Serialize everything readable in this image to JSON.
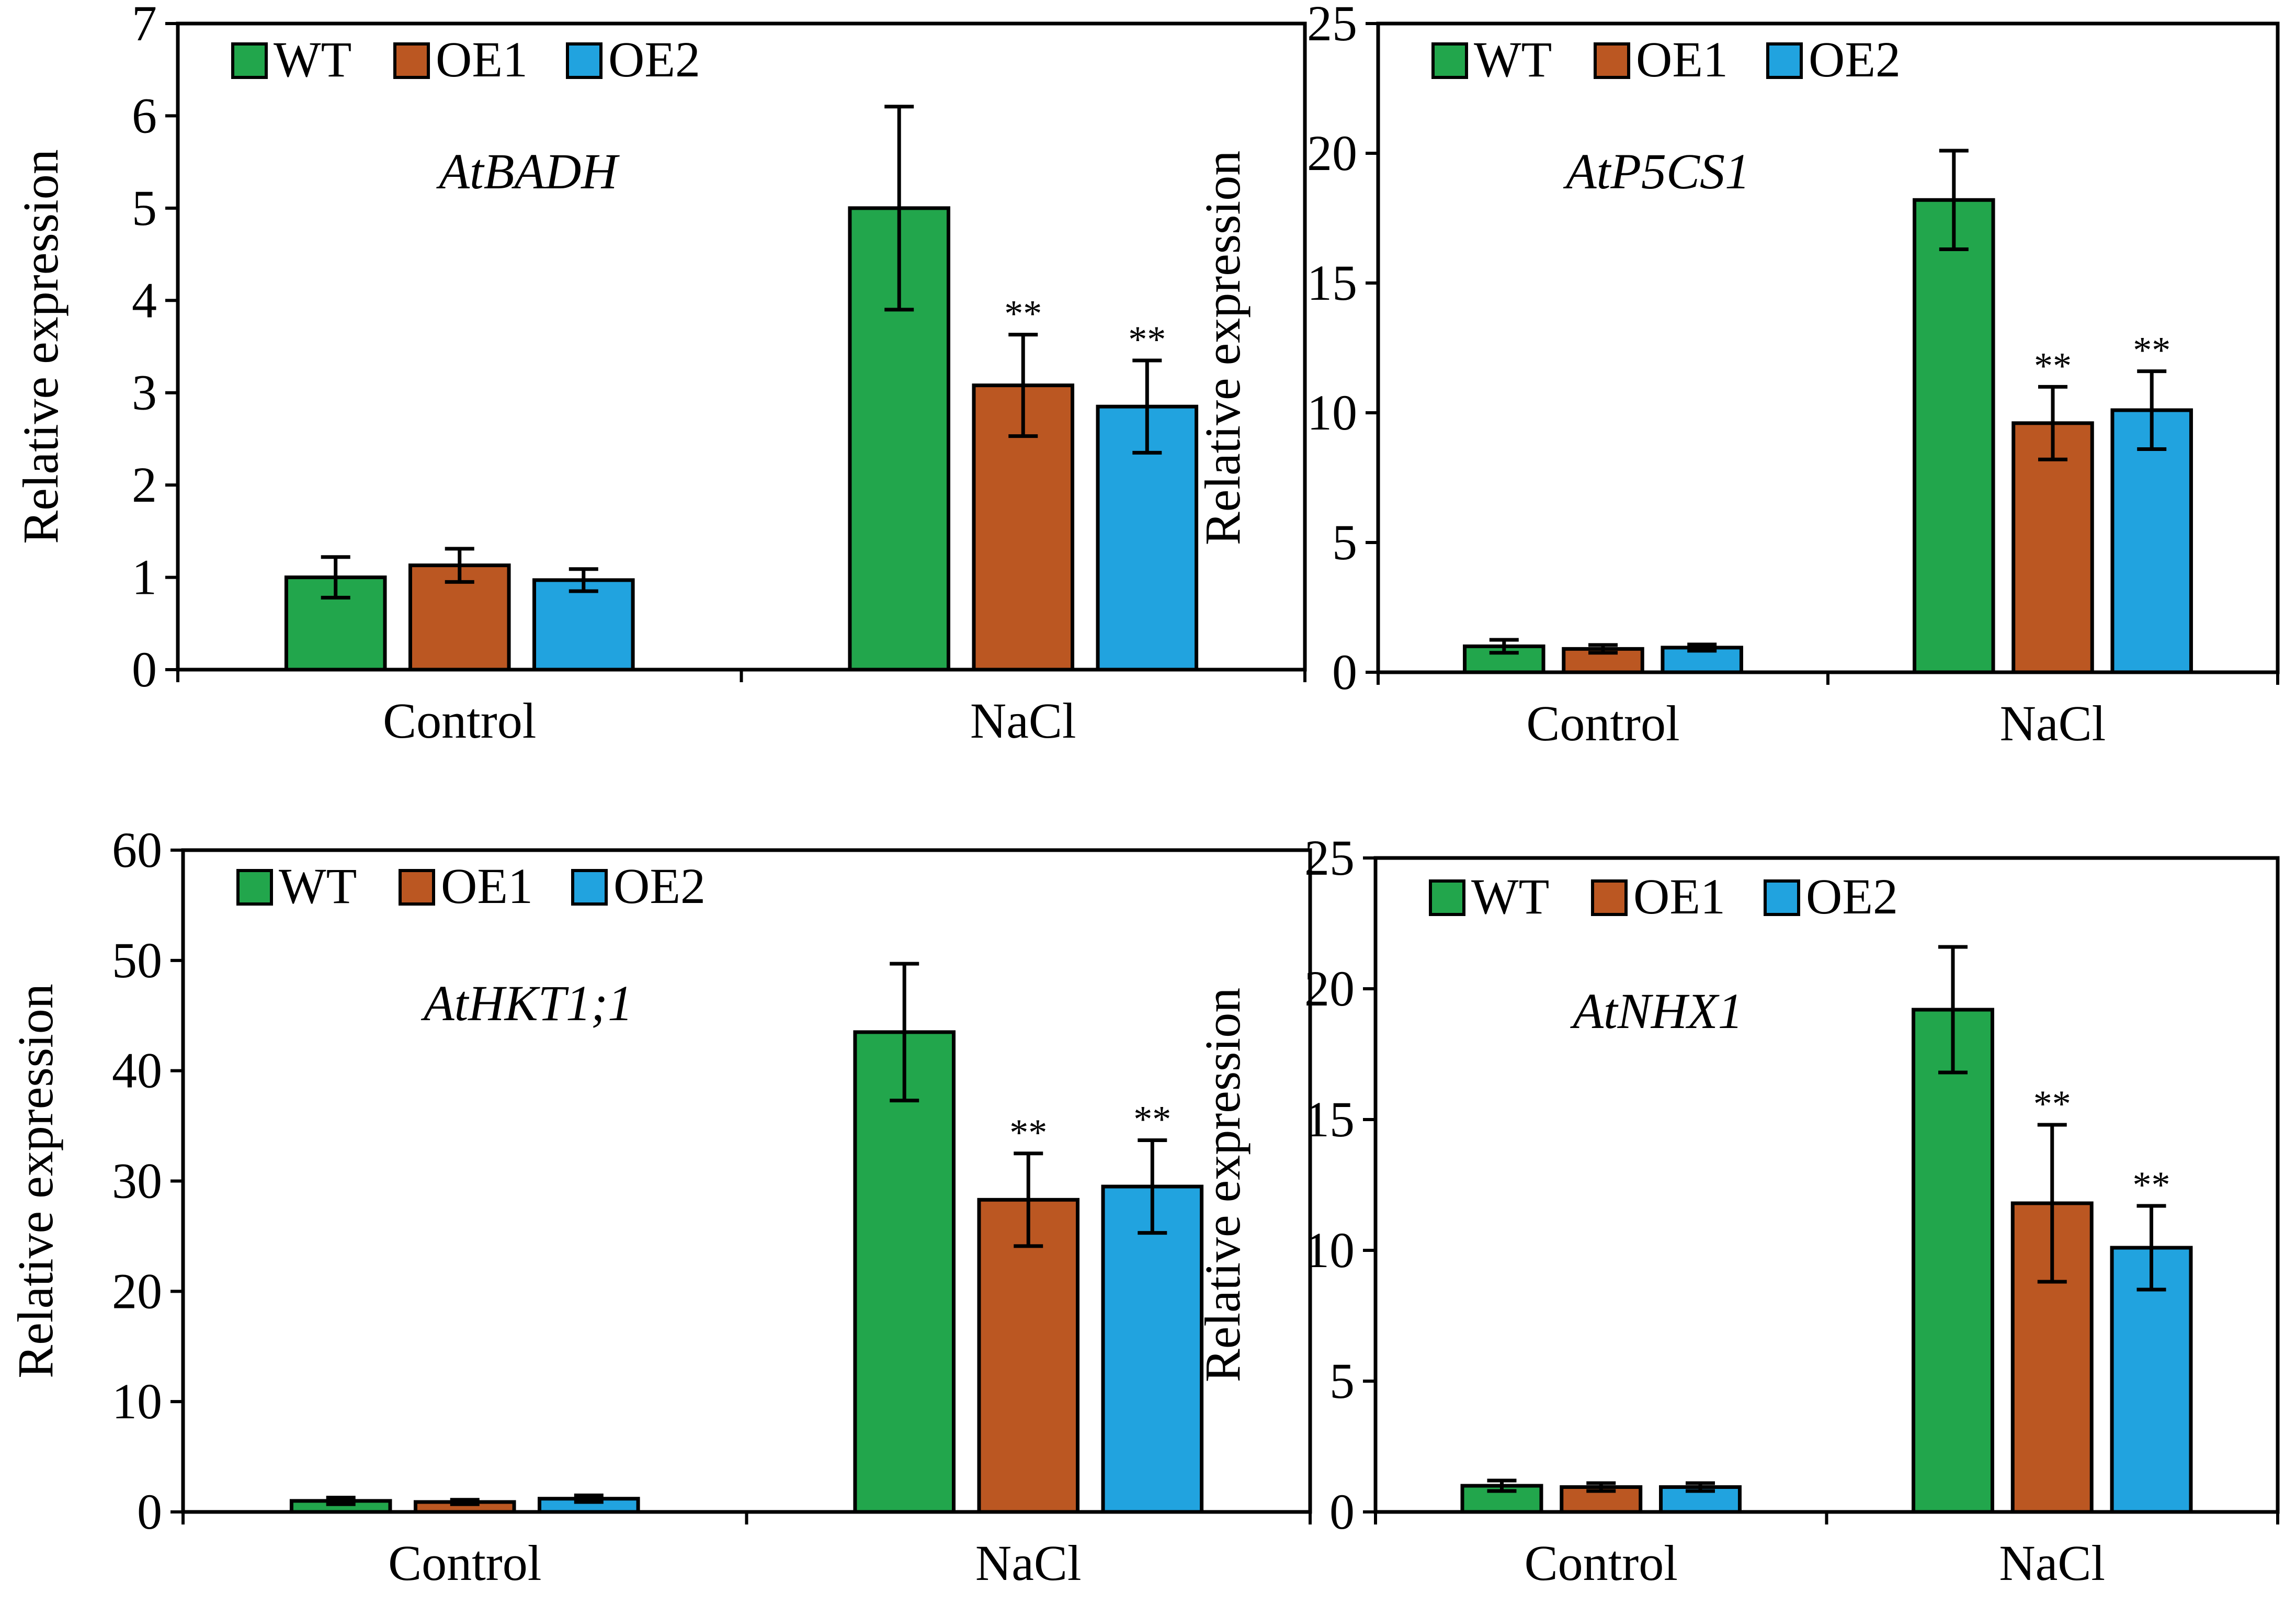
{
  "legend": [
    "WT",
    "OE1",
    "OE2"
  ],
  "colors": {
    "WT": "#22a64c",
    "OE1": "#bb5722",
    "OE2": "#21a3df",
    "axis": "#000000"
  },
  "chart_data": [
    {
      "type": "bar",
      "title": "AtBADH",
      "categories": [
        "Control",
        "NaCl"
      ],
      "ylabel": "Relative expression",
      "xlabel": "",
      "ylim": [
        0,
        7
      ],
      "yticks": [
        0,
        1,
        2,
        3,
        4,
        5,
        6,
        7
      ],
      "legend": [
        "WT",
        "OE1",
        "OE2"
      ],
      "series": [
        {
          "name": "WT",
          "values": [
            1.0,
            5.0
          ],
          "errors": [
            0.22,
            1.1
          ],
          "sig": [
            "",
            ""
          ]
        },
        {
          "name": "OE1",
          "values": [
            1.13,
            3.08
          ],
          "errors": [
            0.18,
            0.55
          ],
          "sig": [
            "",
            "**"
          ]
        },
        {
          "name": "OE2",
          "values": [
            0.97,
            2.85
          ],
          "errors": [
            0.12,
            0.5
          ],
          "sig": [
            "",
            "**"
          ]
        }
      ]
    },
    {
      "type": "bar",
      "title": "AtP5CS1",
      "categories": [
        "Control",
        "NaCl"
      ],
      "ylabel": "Relative expression",
      "xlabel": "",
      "ylim": [
        0,
        25
      ],
      "yticks": [
        0,
        5,
        10,
        15,
        20,
        25
      ],
      "legend": [
        "WT",
        "OE1",
        "OE2"
      ],
      "series": [
        {
          "name": "WT",
          "values": [
            1.0,
            18.2
          ],
          "errors": [
            0.25,
            1.9
          ],
          "sig": [
            "",
            ""
          ]
        },
        {
          "name": "OE1",
          "values": [
            0.9,
            9.6
          ],
          "errors": [
            0.15,
            1.4
          ],
          "sig": [
            "",
            "**"
          ]
        },
        {
          "name": "OE2",
          "values": [
            0.95,
            10.1
          ],
          "errors": [
            0.12,
            1.5
          ],
          "sig": [
            "",
            "**"
          ]
        }
      ]
    },
    {
      "type": "bar",
      "title": "AtHKT1;1",
      "categories": [
        "Control",
        "NaCl"
      ],
      "ylabel": "Relative expression",
      "xlabel": "",
      "ylim": [
        0,
        60
      ],
      "yticks": [
        0,
        10,
        20,
        30,
        40,
        50,
        60
      ],
      "legend": [
        "WT",
        "OE1",
        "OE2"
      ],
      "series": [
        {
          "name": "WT",
          "values": [
            1.0,
            43.5
          ],
          "errors": [
            0.3,
            6.2
          ],
          "sig": [
            "",
            ""
          ]
        },
        {
          "name": "OE1",
          "values": [
            0.9,
            28.3
          ],
          "errors": [
            0.2,
            4.2
          ],
          "sig": [
            "",
            "**"
          ]
        },
        {
          "name": "OE2",
          "values": [
            1.2,
            29.5
          ],
          "errors": [
            0.3,
            4.2
          ],
          "sig": [
            "",
            "**"
          ]
        }
      ]
    },
    {
      "type": "bar",
      "title": "AtNHX1",
      "categories": [
        "Control",
        "NaCl"
      ],
      "ylabel": "Relative expression",
      "xlabel": "",
      "ylim": [
        0,
        25
      ],
      "yticks": [
        0,
        5,
        10,
        15,
        20,
        25
      ],
      "legend": [
        "WT",
        "OE1",
        "OE2"
      ],
      "series": [
        {
          "name": "WT",
          "values": [
            1.0,
            19.2
          ],
          "errors": [
            0.2,
            2.4
          ],
          "sig": [
            "",
            ""
          ]
        },
        {
          "name": "OE1",
          "values": [
            0.95,
            11.8
          ],
          "errors": [
            0.15,
            3.0
          ],
          "sig": [
            "",
            "**"
          ]
        },
        {
          "name": "OE2",
          "values": [
            0.95,
            10.1
          ],
          "errors": [
            0.15,
            1.6
          ],
          "sig": [
            "",
            "**"
          ]
        }
      ]
    }
  ]
}
